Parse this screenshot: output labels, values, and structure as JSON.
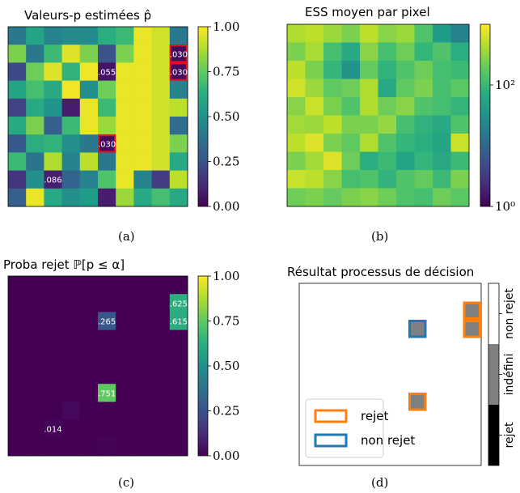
{
  "panels": {
    "a": {
      "title": "Valeurs-p estimées p̂",
      "caption": "(a)",
      "colorbar": {
        "ticks": [
          "1.00",
          "0.75",
          "0.50",
          "0.25",
          "0.00"
        ]
      }
    },
    "b": {
      "title": "ESS moyen par pixel",
      "caption": "(b)",
      "colorbar": {
        "ticks": [
          "10²",
          "10⁰"
        ],
        "scale": "log"
      }
    },
    "c": {
      "title": "Proba rejet ℙ[p ≤ α]",
      "caption": "(c)",
      "colorbar": {
        "ticks": [
          "1.00",
          "0.75",
          "0.50",
          "0.25",
          "0.00"
        ]
      }
    },
    "d": {
      "title": "Résultat processus de décision",
      "caption": "(d)",
      "legend": {
        "rejet": "rejet",
        "non_rejet": "non rejet"
      },
      "colorbar_labels": {
        "rejet": "rejet",
        "indefini": "indéfini",
        "non_rejet": "non rejet"
      },
      "colors": {
        "rejet": "#ff7f0e",
        "non_rejet": "#1f77b4",
        "indefini": "#808080",
        "black": "#000000"
      }
    }
  },
  "chart_data": [
    {
      "type": "heatmap",
      "title": "Valeurs-p estimées p̂",
      "rows": 10,
      "cols": 10,
      "colormap": "viridis",
      "vmin": 0,
      "vmax": 1,
      "values": [
        [
          0.4,
          0.58,
          0.45,
          0.48,
          0.48,
          0.62,
          0.68,
          0.97,
          0.93,
          0.4
        ],
        [
          0.8,
          0.4,
          0.68,
          0.95,
          0.8,
          0.25,
          0.8,
          0.97,
          0.93,
          0.03
        ],
        [
          0.22,
          0.78,
          0.95,
          0.65,
          0.98,
          0.055,
          0.97,
          0.97,
          0.93,
          0.03
        ],
        [
          0.58,
          0.7,
          0.6,
          0.98,
          0.5,
          0.78,
          0.97,
          0.97,
          0.93,
          0.45
        ],
        [
          0.2,
          0.6,
          0.52,
          0.08,
          0.97,
          0.68,
          0.97,
          0.97,
          0.93,
          0.9
        ],
        [
          0.6,
          0.8,
          0.3,
          0.68,
          0.97,
          0.85,
          0.97,
          0.97,
          0.93,
          0.35
        ],
        [
          0.28,
          0.62,
          0.65,
          0.5,
          0.4,
          0.03,
          0.97,
          0.97,
          0.93,
          0.8
        ],
        [
          0.68,
          0.38,
          0.88,
          0.45,
          0.9,
          0.4,
          0.97,
          0.97,
          0.93,
          0.6
        ],
        [
          0.15,
          0.5,
          0.086,
          0.32,
          0.45,
          0.72,
          0.97,
          0.45,
          0.18,
          0.9
        ],
        [
          0.3,
          0.97,
          0.6,
          0.5,
          0.55,
          0.08,
          0.85,
          0.6,
          0.7,
          0.6
        ]
      ],
      "annotations": [
        {
          "row": 1,
          "col": 9,
          "text": ".030",
          "boxed": true
        },
        {
          "row": 2,
          "col": 9,
          "text": ".030",
          "boxed": true
        },
        {
          "row": 2,
          "col": 5,
          "text": ".055",
          "boxed": false
        },
        {
          "row": 6,
          "col": 5,
          "text": ".030",
          "boxed": true
        },
        {
          "row": 8,
          "col": 2,
          "text": ".086",
          "boxed": false
        }
      ],
      "colorbar_ticks": [
        1.0,
        0.75,
        0.5,
        0.25,
        0.0
      ]
    },
    {
      "type": "heatmap",
      "title": "ESS moyen par pixel",
      "rows": 10,
      "cols": 10,
      "colormap": "viridis",
      "scale": "log",
      "vmin": 1,
      "vmax": 1000,
      "values": [
        [
          0.88,
          0.9,
          0.85,
          0.8,
          0.9,
          0.82,
          0.85,
          0.72,
          0.55,
          0.45
        ],
        [
          0.8,
          0.87,
          0.7,
          0.6,
          0.82,
          0.7,
          0.78,
          0.66,
          0.72,
          0.62
        ],
        [
          0.9,
          0.8,
          0.66,
          0.52,
          0.76,
          0.65,
          0.72,
          0.78,
          0.7,
          0.68
        ],
        [
          0.93,
          0.85,
          0.75,
          0.78,
          0.88,
          0.6,
          0.75,
          0.8,
          0.7,
          0.74
        ],
        [
          0.82,
          0.92,
          0.8,
          0.72,
          0.88,
          0.78,
          0.82,
          0.72,
          0.7,
          0.66
        ],
        [
          0.86,
          0.85,
          0.9,
          0.8,
          0.8,
          0.84,
          0.7,
          0.64,
          0.6,
          0.72
        ],
        [
          0.9,
          0.95,
          0.8,
          0.75,
          0.88,
          0.72,
          0.66,
          0.62,
          0.58,
          0.92
        ],
        [
          0.8,
          0.86,
          0.95,
          0.78,
          0.62,
          0.68,
          0.58,
          0.66,
          0.6,
          0.68
        ],
        [
          0.92,
          0.9,
          0.82,
          0.7,
          0.72,
          0.65,
          0.72,
          0.76,
          0.68,
          0.8
        ],
        [
          0.78,
          0.8,
          0.76,
          0.8,
          0.82,
          0.78,
          0.72,
          0.7,
          0.78,
          0.74
        ]
      ],
      "colorbar_ticks": [
        "10^2",
        "10^0"
      ]
    },
    {
      "type": "heatmap",
      "title": "Proba rejet ℙ[p ≤ α]",
      "rows": 10,
      "cols": 10,
      "colormap": "viridis",
      "vmin": 0,
      "vmax": 1,
      "values": [
        [
          0,
          0,
          0,
          0,
          0,
          0,
          0,
          0,
          0,
          0
        ],
        [
          0,
          0,
          0,
          0,
          0,
          0,
          0,
          0,
          0,
          0.625
        ],
        [
          0,
          0,
          0,
          0,
          0,
          0.265,
          0,
          0,
          0,
          0.615
        ],
        [
          0,
          0,
          0,
          0,
          0,
          0,
          0,
          0,
          0,
          0
        ],
        [
          0,
          0,
          0,
          0,
          0,
          0,
          0,
          0,
          0,
          0
        ],
        [
          0,
          0,
          0,
          0,
          0,
          0,
          0,
          0,
          0,
          0
        ],
        [
          0,
          0,
          0,
          0,
          0,
          0.751,
          0,
          0,
          0,
          0
        ],
        [
          0,
          0,
          0,
          0.02,
          0,
          0,
          0,
          0,
          0,
          0
        ],
        [
          0,
          0,
          0.014,
          0,
          0,
          0,
          0,
          0,
          0,
          0
        ],
        [
          0,
          0,
          0,
          0,
          0,
          0.01,
          0,
          0,
          0,
          0
        ]
      ],
      "annotations": [
        {
          "row": 1,
          "col": 9,
          "text": ".625"
        },
        {
          "row": 2,
          "col": 9,
          "text": ".615"
        },
        {
          "row": 2,
          "col": 5,
          "text": ".265"
        },
        {
          "row": 6,
          "col": 5,
          "text": ".751"
        },
        {
          "row": 8,
          "col": 2,
          "text": ".014"
        }
      ],
      "colorbar_ticks": [
        1.0,
        0.75,
        0.5,
        0.25,
        0.0
      ]
    },
    {
      "type": "heatmap",
      "title": "Résultat processus de décision",
      "rows": 10,
      "cols": 10,
      "cells": [
        {
          "row": 1,
          "col": 9,
          "class": "rejet",
          "fill": "indéfini"
        },
        {
          "row": 2,
          "col": 9,
          "class": "rejet",
          "fill": "indéfini"
        },
        {
          "row": 2,
          "col": 6,
          "class": "non rejet",
          "fill": "indéfini"
        },
        {
          "row": 6,
          "col": 6,
          "class": "rejet",
          "fill": "indéfini"
        }
      ],
      "legend": [
        "rejet",
        "non rejet"
      ],
      "colorbar_categories": [
        "rejet",
        "indéfini",
        "non rejet"
      ]
    }
  ]
}
